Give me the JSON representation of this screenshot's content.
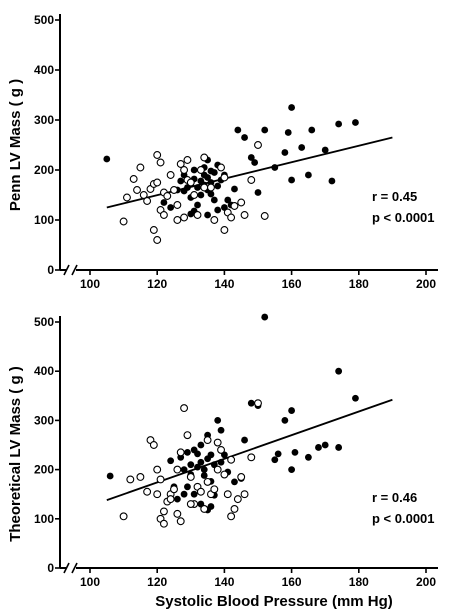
{
  "chart_data": [
    {
      "type": "scatter",
      "xlabel": "",
      "ylabel": "Penn LV Mass ( g )",
      "xlim": [
        100,
        200
      ],
      "ylim": [
        0,
        500
      ],
      "xticks": [
        "100",
        "120",
        "140",
        "160",
        "180",
        "200"
      ],
      "yticks": [
        "0",
        "100",
        "200",
        "300",
        "400",
        "500"
      ],
      "stat_r": "r = 0.45",
      "stat_p": "p < 0.0001",
      "regression": {
        "x": [
          105,
          190
        ],
        "y": [
          125,
          265
        ]
      },
      "series": [
        {
          "marker": "filled",
          "points": [
            [
              105,
              222
            ],
            [
              128,
              158
            ],
            [
              130,
              172
            ],
            [
              131,
              182
            ],
            [
              132,
              165
            ],
            [
              133,
              178
            ],
            [
              134,
              190
            ],
            [
              134,
              170
            ],
            [
              135,
              185
            ],
            [
              135,
              160
            ],
            [
              136,
              175
            ],
            [
              137,
              195
            ],
            [
              136,
              152
            ],
            [
              138,
              168
            ],
            [
              139,
              180
            ],
            [
              140,
              190
            ],
            [
              133,
              150
            ],
            [
              130,
              145
            ],
            [
              129,
              165
            ],
            [
              127,
              178
            ],
            [
              126,
              160
            ],
            [
              131,
              200
            ],
            [
              135,
              220
            ],
            [
              138,
              210
            ],
            [
              137,
              140
            ],
            [
              132,
              130
            ],
            [
              141,
              140
            ],
            [
              143,
              162
            ],
            [
              144,
              280
            ],
            [
              146,
              265
            ],
            [
              149,
              215
            ],
            [
              150,
              155
            ],
            [
              148,
              225
            ],
            [
              152,
              280
            ],
            [
              155,
              205
            ],
            [
              158,
              235
            ],
            [
              159,
              275
            ],
            [
              160,
              325
            ],
            [
              160,
              180
            ],
            [
              163,
              245
            ],
            [
              165,
              190
            ],
            [
              166,
              280
            ],
            [
              170,
              240
            ],
            [
              172,
              178
            ],
            [
              174,
              292
            ],
            [
              179,
              295
            ],
            [
              134,
              205
            ],
            [
              136,
              198
            ],
            [
              128,
              190
            ],
            [
              138,
              120
            ],
            [
              140,
              125
            ],
            [
              142,
              130
            ],
            [
              124,
              125
            ],
            [
              122,
              135
            ],
            [
              135,
              110
            ],
            [
              131,
              118
            ],
            [
              130,
              112
            ]
          ]
        },
        {
          "marker": "open",
          "points": [
            [
              110,
              97
            ],
            [
              111,
              145
            ],
            [
              113,
              182
            ],
            [
              115,
              205
            ],
            [
              114,
              160
            ],
            [
              116,
              150
            ],
            [
              118,
              162
            ],
            [
              117,
              138
            ],
            [
              119,
              172
            ],
            [
              120,
              230
            ],
            [
              121,
              215
            ],
            [
              120,
              175
            ],
            [
              122,
              155
            ],
            [
              121,
              120
            ],
            [
              119,
              80
            ],
            [
              120,
              60
            ],
            [
              123,
              148
            ],
            [
              124,
              190
            ],
            [
              125,
              160
            ],
            [
              126,
              130
            ],
            [
              127,
              212
            ],
            [
              128,
              200
            ],
            [
              129,
              180
            ],
            [
              130,
              175
            ],
            [
              131,
              150
            ],
            [
              133,
              200
            ],
            [
              134,
              165
            ],
            [
              136,
              165
            ],
            [
              139,
              205
            ],
            [
              140,
              185
            ],
            [
              141,
              115
            ],
            [
              142,
              105
            ],
            [
              143,
              128
            ],
            [
              145,
              135
            ],
            [
              146,
              110
            ],
            [
              148,
              180
            ],
            [
              150,
              250
            ],
            [
              126,
              100
            ],
            [
              128,
              105
            ],
            [
              132,
              110
            ],
            [
              137,
              100
            ],
            [
              140,
              80
            ],
            [
              152,
              108
            ],
            [
              122,
              110
            ],
            [
              129,
              220
            ],
            [
              134,
              225
            ]
          ]
        }
      ]
    },
    {
      "type": "scatter",
      "xlabel": "Systolic  Blood  Pressure  (mm Hg)",
      "ylabel": "Theoretical LV Mass ( g )",
      "xlim": [
        100,
        200
      ],
      "ylim": [
        0,
        500
      ],
      "xticks": [
        "100",
        "120",
        "140",
        "160",
        "180",
        "200"
      ],
      "yticks": [
        "0",
        "100",
        "200",
        "300",
        "400",
        "500"
      ],
      "stat_r": "r = 0.46",
      "stat_p": "p < 0.0001",
      "regression": {
        "x": [
          105,
          190
        ],
        "y": [
          138,
          342
        ]
      },
      "series": [
        {
          "marker": "filled",
          "points": [
            [
              106,
              187
            ],
            [
              124,
              218
            ],
            [
              127,
              225
            ],
            [
              128,
              200
            ],
            [
              130,
              210
            ],
            [
              131,
              240
            ],
            [
              132,
              232
            ],
            [
              133,
              215
            ],
            [
              134,
              200
            ],
            [
              135,
              222
            ],
            [
              136,
              230
            ],
            [
              134,
              188
            ],
            [
              136,
              176
            ],
            [
              137,
              210
            ],
            [
              138,
              200
            ],
            [
              139,
              215
            ],
            [
              130,
              190
            ],
            [
              129,
              165
            ],
            [
              131,
              150
            ],
            [
              133,
              130
            ],
            [
              135,
              118
            ],
            [
              136,
              125
            ],
            [
              137,
              148
            ],
            [
              138,
              300
            ],
            [
              139,
              280
            ],
            [
              140,
              230
            ],
            [
              141,
              195
            ],
            [
              143,
              175
            ],
            [
              145,
              182
            ],
            [
              146,
              260
            ],
            [
              148,
              335
            ],
            [
              150,
              330
            ],
            [
              152,
              510
            ],
            [
              155,
              220
            ],
            [
              156,
              232
            ],
            [
              158,
              300
            ],
            [
              160,
              320
            ],
            [
              160,
              200
            ],
            [
              161,
              235
            ],
            [
              165,
              225
            ],
            [
              168,
              245
            ],
            [
              170,
              250
            ],
            [
              174,
              400
            ],
            [
              174,
              245
            ],
            [
              179,
              345
            ],
            [
              133,
              250
            ],
            [
              135,
              270
            ],
            [
              132,
              205
            ],
            [
              129,
              235
            ],
            [
              128,
              150
            ],
            [
              125,
              165
            ],
            [
              126,
              140
            ]
          ]
        },
        {
          "marker": "open",
          "points": [
            [
              110,
              105
            ],
            [
              112,
              180
            ],
            [
              115,
              185
            ],
            [
              117,
              155
            ],
            [
              118,
              260
            ],
            [
              119,
              250
            ],
            [
              120,
              200
            ],
            [
              121,
              180
            ],
            [
              121,
              100
            ],
            [
              122,
              90
            ],
            [
              123,
              135
            ],
            [
              124,
              150
            ],
            [
              125,
              160
            ],
            [
              126,
              110
            ],
            [
              127,
              95
            ],
            [
              127,
              235
            ],
            [
              128,
              325
            ],
            [
              129,
              270
            ],
            [
              130,
              185
            ],
            [
              131,
              130
            ],
            [
              132,
              165
            ],
            [
              133,
              155
            ],
            [
              134,
              120
            ],
            [
              135,
              175
            ],
            [
              136,
              150
            ],
            [
              137,
              160
            ],
            [
              138,
              200
            ],
            [
              139,
              240
            ],
            [
              140,
              190
            ],
            [
              141,
              150
            ],
            [
              142,
              105
            ],
            [
              143,
              120
            ],
            [
              144,
              140
            ],
            [
              145,
              185
            ],
            [
              146,
              150
            ],
            [
              148,
              225
            ],
            [
              150,
              335
            ],
            [
              124,
              140
            ],
            [
              122,
              115
            ],
            [
              130,
              130
            ],
            [
              126,
              200
            ],
            [
              120,
              150
            ],
            [
              135,
              260
            ],
            [
              138,
              255
            ],
            [
              142,
              220
            ]
          ]
        }
      ]
    }
  ]
}
